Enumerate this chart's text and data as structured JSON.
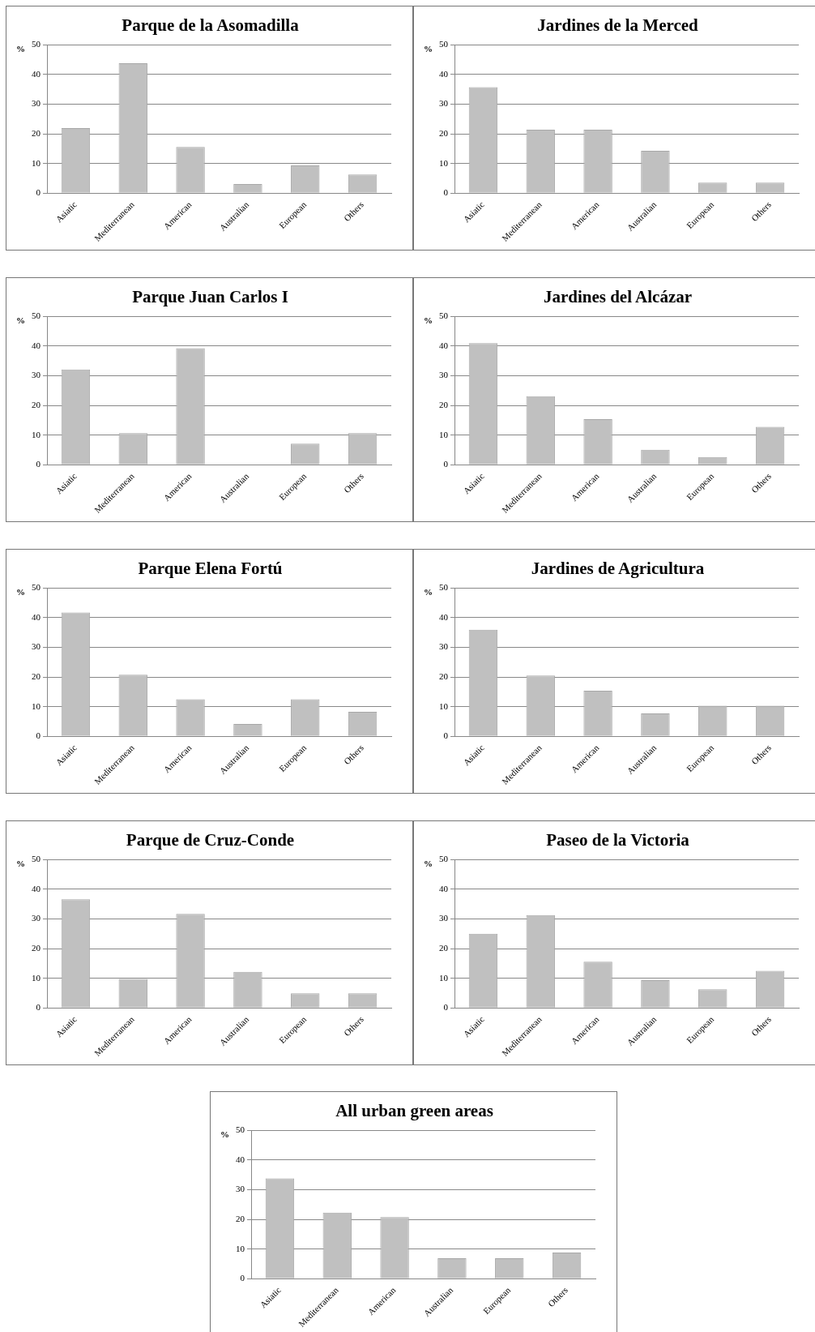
{
  "chart_data": [
    {
      "type": "bar",
      "title": "Parque de la Asomadilla",
      "ylabel": "%",
      "categories": [
        "Asiatic",
        "Mediterranean",
        "American",
        "Australian",
        "European",
        "Others"
      ],
      "values": [
        21.9,
        43.8,
        15.6,
        3.1,
        9.4,
        6.3
      ],
      "color": "#c0c0c0",
      "ylim": [
        0,
        50
      ],
      "yticks": [
        0,
        10,
        20,
        30,
        40,
        50
      ],
      "grid": "y"
    },
    {
      "type": "bar",
      "title": "Jardines de la Merced",
      "ylabel": "%",
      "categories": [
        "Asiatic",
        "Mediterranean",
        "American",
        "Australian",
        "European",
        "Others"
      ],
      "values": [
        35.7,
        21.4,
        21.4,
        14.3,
        3.6,
        3.6
      ],
      "color": "#c0c0c0",
      "ylim": [
        0,
        50
      ],
      "yticks": [
        0,
        10,
        20,
        30,
        40,
        50
      ],
      "grid": "y"
    },
    {
      "type": "bar",
      "title": "Parque Juan Carlos I",
      "ylabel": "%",
      "categories": [
        "Asiatic",
        "Mediterranean",
        "American",
        "Australian",
        "European",
        "Others"
      ],
      "values": [
        32.1,
        10.7,
        39.3,
        0,
        7.1,
        10.7
      ],
      "color": "#c0c0c0",
      "ylim": [
        0,
        50
      ],
      "yticks": [
        0,
        10,
        20,
        30,
        40,
        50
      ],
      "grid": "y"
    },
    {
      "type": "bar",
      "title": "Jardines del Alcázar",
      "ylabel": "%",
      "categories": [
        "Asiatic",
        "Mediterranean",
        "American",
        "Australian",
        "European",
        "Others"
      ],
      "values": [
        41.0,
        23.1,
        15.4,
        5.1,
        2.6,
        12.8
      ],
      "color": "#c0c0c0",
      "ylim": [
        0,
        50
      ],
      "yticks": [
        0,
        10,
        20,
        30,
        40,
        50
      ],
      "grid": "y"
    },
    {
      "type": "bar",
      "title": "Parque Elena Fortú",
      "ylabel": "%",
      "categories": [
        "Asiatic",
        "Mediterranean",
        "American",
        "Australian",
        "European",
        "Others"
      ],
      "values": [
        41.7,
        20.8,
        12.5,
        4.2,
        12.5,
        8.3
      ],
      "color": "#c0c0c0",
      "ylim": [
        0,
        50
      ],
      "yticks": [
        0,
        10,
        20,
        30,
        40,
        50
      ],
      "grid": "y"
    },
    {
      "type": "bar",
      "title": "Jardines de Agricultura",
      "ylabel": "%",
      "categories": [
        "Asiatic",
        "Mediterranean",
        "American",
        "Australian",
        "European",
        "Others"
      ],
      "values": [
        35.9,
        20.5,
        15.4,
        7.7,
        10.3,
        10.3
      ],
      "color": "#c0c0c0",
      "ylim": [
        0,
        50
      ],
      "yticks": [
        0,
        10,
        20,
        30,
        40,
        50
      ],
      "grid": "y"
    },
    {
      "type": "bar",
      "title": "Parque de Cruz-Conde",
      "ylabel": "%",
      "categories": [
        "Asiatic",
        "Mediterranean",
        "American",
        "Australian",
        "European",
        "Others"
      ],
      "values": [
        36.6,
        9.8,
        31.7,
        12.2,
        4.9,
        4.9
      ],
      "color": "#c0c0c0",
      "ylim": [
        0,
        50
      ],
      "yticks": [
        0,
        10,
        20,
        30,
        40,
        50
      ],
      "grid": "y"
    },
    {
      "type": "bar",
      "title": "Paseo de la Victoria",
      "ylabel": "%",
      "categories": [
        "Asiatic",
        "Mediterranean",
        "American",
        "Australian",
        "European",
        "Others"
      ],
      "values": [
        25.0,
        31.3,
        15.6,
        9.4,
        6.3,
        12.5
      ],
      "color": "#c0c0c0",
      "ylim": [
        0,
        50
      ],
      "yticks": [
        0,
        10,
        20,
        30,
        40,
        50
      ],
      "grid": "y"
    },
    {
      "type": "bar",
      "title": "All urban green areas",
      "ylabel": "%",
      "categories": [
        "Asiatic",
        "Mediterranean",
        "American",
        "Australian",
        "European",
        "Others"
      ],
      "values": [
        33.8,
        22.3,
        20.8,
        6.9,
        6.9,
        8.8
      ],
      "color": "#c0c0c0",
      "ylim": [
        0,
        50
      ],
      "yticks": [
        0,
        10,
        20,
        30,
        40,
        50
      ],
      "grid": "y"
    }
  ]
}
